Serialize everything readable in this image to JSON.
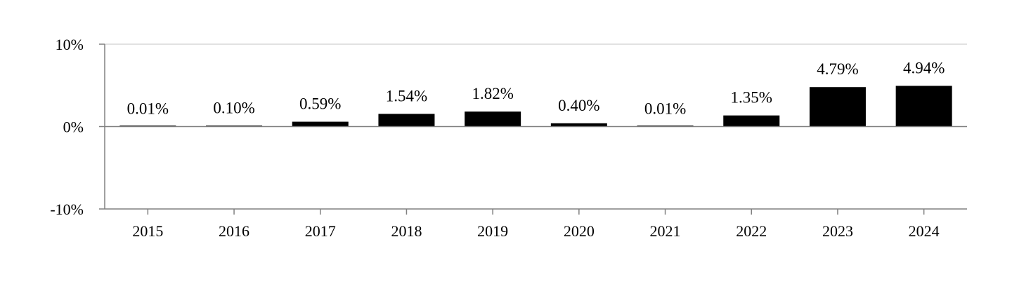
{
  "chart_data": {
    "type": "bar",
    "categories": [
      "2015",
      "2016",
      "2017",
      "2018",
      "2019",
      "2020",
      "2021",
      "2022",
      "2023",
      "2024"
    ],
    "values": [
      0.01,
      0.1,
      0.59,
      1.54,
      1.82,
      0.4,
      0.01,
      1.35,
      4.79,
      4.94
    ],
    "data_labels": [
      "0.01%",
      "0.10%",
      "0.59%",
      "1.54%",
      "1.82%",
      "0.40%",
      "0.01%",
      "1.35%",
      "4.79%",
      "4.94%"
    ],
    "ylim": [
      -10,
      10
    ],
    "y_ticks": [
      10,
      0,
      -10
    ],
    "y_tick_labels": [
      "10%",
      "0%",
      "-10%"
    ],
    "title": "",
    "xlabel": "",
    "ylabel": "",
    "grid": "top gridline only",
    "legend": "none",
    "colors": {
      "bar": "#000000",
      "axis": "#808080",
      "gridline": "#d9d9d9",
      "text": "#000000"
    }
  }
}
